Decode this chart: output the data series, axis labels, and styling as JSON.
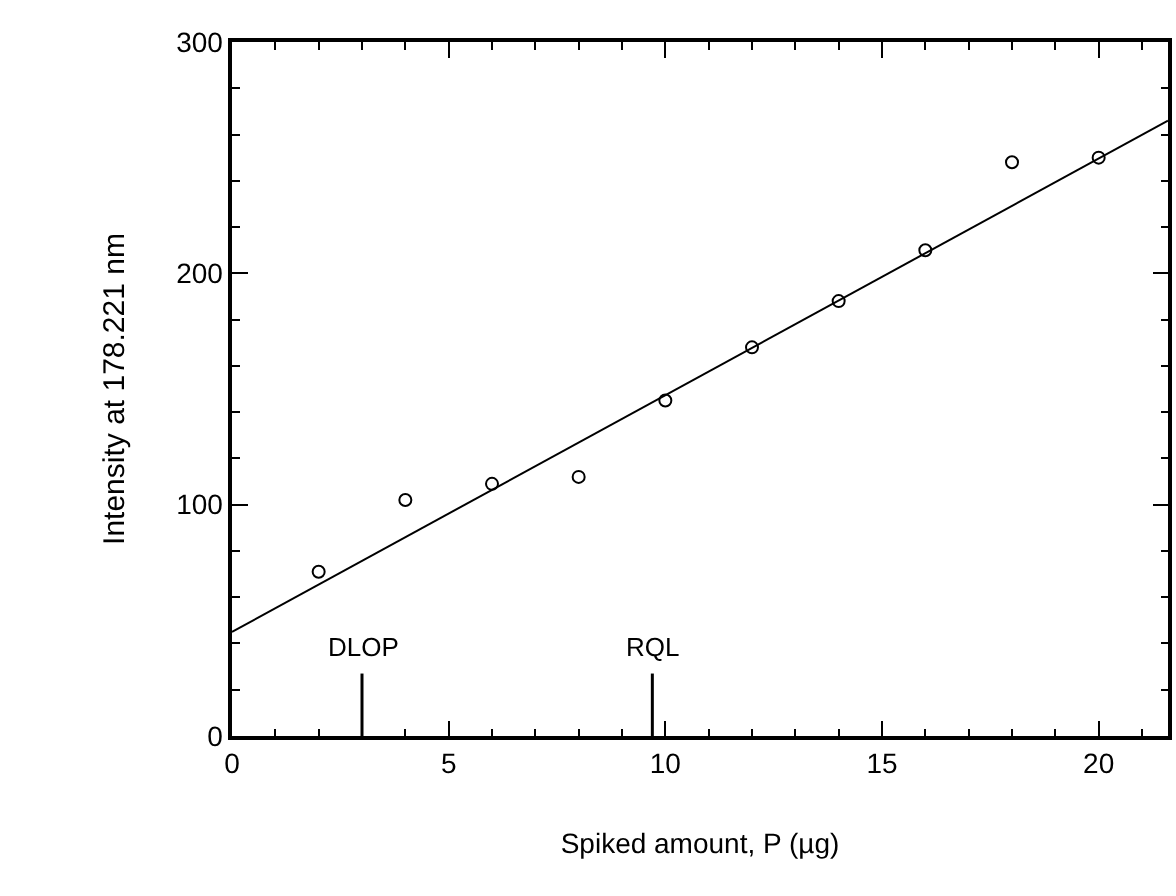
{
  "chart_data": {
    "type": "scatter",
    "xlabel": "Spiked amount, P (µg)",
    "ylabel": "Intensity at 178.221 nm",
    "x": [
      2,
      4,
      6,
      8,
      10,
      12,
      14,
      16,
      18,
      20
    ],
    "series": [
      {
        "color": "#000000",
        "marker": "circle",
        "values": [
          71,
          102,
          109,
          112,
          145,
          168,
          188,
          210,
          248,
          250
        ]
      },
      {
        "type": "line",
        "color": "#000000",
        "marker": "none",
        "x": [
          0,
          21.6
        ],
        "values": [
          45,
          266
        ]
      }
    ],
    "xlim": [
      0,
      21.6
    ],
    "xticks": [
      0,
      5,
      10,
      15,
      20
    ],
    "ylim": [
      0,
      300
    ],
    "yticks": [
      0,
      100,
      200,
      300
    ],
    "ref_lines": [
      {
        "axis": "x",
        "value": 3,
        "label": "DLOP"
      },
      {
        "axis": "x",
        "value": 9.7,
        "label": "RQL"
      }
    ]
  }
}
